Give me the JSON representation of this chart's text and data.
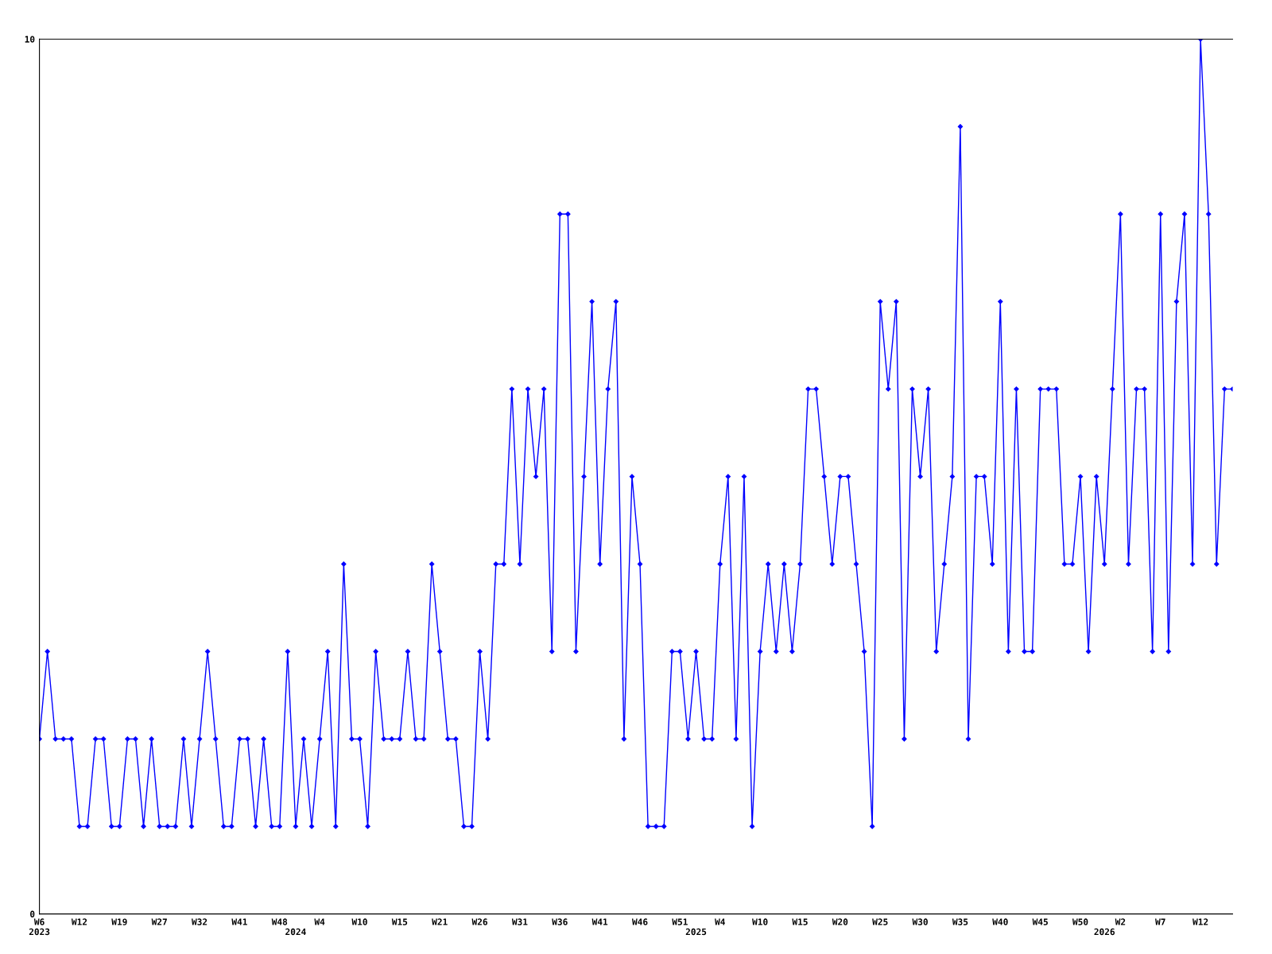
{
  "chart_data": {
    "type": "line",
    "categories": [
      "W6\n2023",
      null,
      null,
      null,
      null,
      "W12",
      null,
      null,
      null,
      null,
      "W19",
      null,
      null,
      null,
      null,
      "W27",
      null,
      null,
      null,
      null,
      "W32",
      null,
      null,
      null,
      null,
      "W41",
      null,
      null,
      null,
      null,
      "W48",
      null,
      "\n2024",
      null,
      null,
      "W4",
      null,
      null,
      null,
      null,
      "W10",
      null,
      null,
      null,
      null,
      "W15",
      null,
      null,
      null,
      null,
      "W21",
      null,
      null,
      null,
      null,
      "W26",
      null,
      null,
      null,
      null,
      "W31",
      null,
      null,
      null,
      null,
      "W36",
      null,
      null,
      null,
      null,
      "W41",
      null,
      null,
      null,
      null,
      "W46",
      null,
      null,
      null,
      null,
      "W51",
      null,
      "\n2025",
      null,
      null,
      "W4",
      null,
      null,
      null,
      null,
      "W10",
      null,
      null,
      null,
      null,
      "W15",
      null,
      null,
      null,
      null,
      "W20",
      null,
      null,
      null,
      null,
      "W25",
      null,
      null,
      null,
      null,
      "W30",
      null,
      null,
      null,
      null,
      "W35",
      null,
      null,
      null,
      null,
      "W40",
      null,
      null,
      null,
      null,
      "W45",
      null,
      null,
      null,
      null,
      "W50",
      null,
      null,
      "\n2026",
      null,
      "W2",
      null,
      null,
      null,
      null,
      "W7",
      null,
      null,
      null,
      null,
      "W12",
      null,
      null,
      null,
      null
    ],
    "series": [
      {
        "color": "#0000ff",
        "values": [
          2,
          3,
          2,
          2,
          2,
          1,
          1,
          2,
          2,
          1,
          1,
          2,
          2,
          1,
          2,
          1,
          1,
          1,
          2,
          1,
          2,
          3,
          2,
          1,
          1,
          2,
          2,
          1,
          2,
          1,
          1,
          3,
          1,
          2,
          1,
          2,
          3,
          1,
          4,
          2,
          2,
          1,
          3,
          2,
          2,
          2,
          3,
          2,
          2,
          4,
          3,
          2,
          2,
          1,
          1,
          3,
          2,
          4,
          4,
          6,
          4,
          6,
          5,
          6,
          3,
          8,
          8,
          3,
          5,
          7,
          4,
          6,
          7,
          2,
          5,
          4,
          1,
          1,
          1,
          3,
          3,
          2,
          3,
          2,
          2,
          4,
          5,
          2,
          5,
          1,
          3,
          4,
          3,
          4,
          3,
          4,
          6,
          6,
          5,
          4,
          5,
          5,
          4,
          3,
          1,
          7,
          6,
          7,
          2,
          6,
          5,
          6,
          3,
          4,
          5,
          9,
          2,
          5,
          5,
          4,
          7,
          3,
          6,
          3,
          3,
          6,
          6,
          6,
          4,
          4,
          5,
          3,
          5,
          4,
          6,
          8,
          4,
          6,
          6,
          3,
          8,
          3,
          7,
          8,
          4,
          10,
          8,
          4,
          6,
          6
        ]
      }
    ],
    "ylim": [
      0,
      10
    ],
    "yticks": [
      0,
      10
    ],
    "grid": false,
    "marker": "diamond",
    "line_style": "solid"
  }
}
